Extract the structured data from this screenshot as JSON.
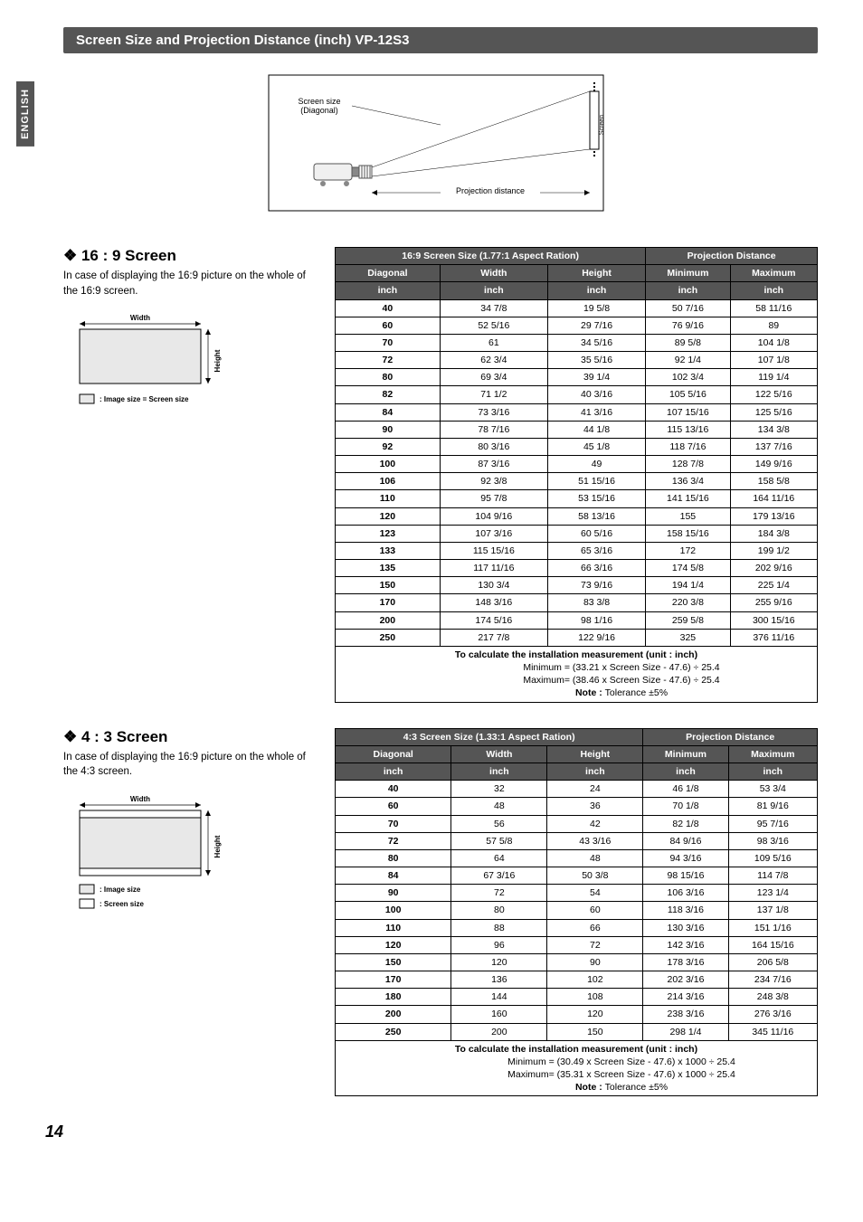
{
  "sideTab": "ENGLISH",
  "titleBar": "Screen Size and Projection Distance (inch)  VP-12S3",
  "pageNum": "14",
  "topDiagram": {
    "screenSizeLabel": "Screen size\n(Diagonal)",
    "projDistLabel": "Projection distance",
    "screenLabel": "Screen"
  },
  "sec169": {
    "heading": "16 : 9 Screen",
    "desc": "In case of displaying the 16:9 picture on the whole of the 16:9 screen.",
    "mini": {
      "widthLabel": "Width",
      "heightLabel": "Height",
      "legend1": ": Image size = Screen size"
    },
    "table": {
      "h1": "16:9 Screen Size (1.77:1 Aspect Ration)",
      "h2": "Projection Distance",
      "cols": [
        "Diagonal",
        "Width",
        "Height",
        "Minimum",
        "Maximum"
      ],
      "unit": "inch",
      "rows": [
        [
          "40",
          "34 7/8",
          "19 5/8",
          "50 7/16",
          "58 11/16"
        ],
        [
          "60",
          "52 5/16",
          "29 7/16",
          "76 9/16",
          "89"
        ],
        [
          "70",
          "61",
          "34 5/16",
          "89 5/8",
          "104 1/8"
        ],
        [
          "72",
          "62 3/4",
          "35 5/16",
          "92 1/4",
          "107 1/8"
        ],
        [
          "80",
          "69 3/4",
          "39 1/4",
          "102 3/4",
          "119 1/4"
        ],
        [
          "82",
          "71 1/2",
          "40 3/16",
          "105 5/16",
          "122 5/16"
        ],
        [
          "84",
          "73 3/16",
          "41 3/16",
          "107 15/16",
          "125 5/16"
        ],
        [
          "90",
          "78 7/16",
          "44 1/8",
          "115 13/16",
          "134 3/8"
        ],
        [
          "92",
          "80 3/16",
          "45 1/8",
          "118 7/16",
          "137 7/16"
        ],
        [
          "100",
          "87 3/16",
          "49",
          "128 7/8",
          "149 9/16"
        ],
        [
          "106",
          "92 3/8",
          "51 15/16",
          "136 3/4",
          "158 5/8"
        ],
        [
          "110",
          "95 7/8",
          "53 15/16",
          "141 15/16",
          "164 11/16"
        ],
        [
          "120",
          "104 9/16",
          "58 13/16",
          "155",
          "179 13/16"
        ],
        [
          "123",
          "107 3/16",
          "60 5/16",
          "158 15/16",
          "184 3/8"
        ],
        [
          "133",
          "115 15/16",
          "65 3/16",
          "172",
          "199 1/2"
        ],
        [
          "135",
          "117 11/16",
          "66 3/16",
          "174 5/8",
          "202 9/16"
        ],
        [
          "150",
          "130 3/4",
          "73 9/16",
          "194 1/4",
          "225 1/4"
        ],
        [
          "170",
          "148 3/16",
          "83 3/8",
          "220 3/8",
          "255 9/16"
        ],
        [
          "200",
          "174 5/16",
          "98 1/16",
          "259 5/8",
          "300 15/16"
        ],
        [
          "250",
          "217 7/8",
          "122 9/16",
          "325",
          "376 11/16"
        ]
      ],
      "calcHead": "To calculate the installation measurement (unit : inch)",
      "calcMin": "Minimum = (33.21 x Screen Size - 47.6) ÷ 25.4",
      "calcMax": "Maximum= (38.46 x Screen Size - 47.6) ÷ 25.4",
      "calcNote": "Note : ",
      "calcNoteRest": "Tolerance ±5%"
    }
  },
  "sec43": {
    "heading": "4 : 3 Screen",
    "desc": "In case of displaying the 16:9 picture on the whole of the 4:3 screen.",
    "mini": {
      "widthLabel": "Width",
      "heightLabel": "Height",
      "legend1": ": Image size",
      "legend2": ": Screen size"
    },
    "table": {
      "h1": "4:3 Screen Size (1.33:1 Aspect Ration)",
      "h2": "Projection Distance",
      "cols": [
        "Diagonal",
        "Width",
        "Height",
        "Minimum",
        "Maximum"
      ],
      "unit": "inch",
      "rows": [
        [
          "40",
          "32",
          "24",
          "46 1/8",
          "53 3/4"
        ],
        [
          "60",
          "48",
          "36",
          "70 1/8",
          "81 9/16"
        ],
        [
          "70",
          "56",
          "42",
          "82 1/8",
          "95 7/16"
        ],
        [
          "72",
          "57 5/8",
          "43 3/16",
          "84 9/16",
          "98 3/16"
        ],
        [
          "80",
          "64",
          "48",
          "94 3/16",
          "109 5/16"
        ],
        [
          "84",
          "67 3/16",
          "50 3/8",
          "98 15/16",
          "114 7/8"
        ],
        [
          "90",
          "72",
          "54",
          "106 3/16",
          "123 1/4"
        ],
        [
          "100",
          "80",
          "60",
          "118 3/16",
          "137 1/8"
        ],
        [
          "110",
          "88",
          "66",
          "130 3/16",
          "151 1/16"
        ],
        [
          "120",
          "96",
          "72",
          "142 3/16",
          "164 15/16"
        ],
        [
          "150",
          "120",
          "90",
          "178 3/16",
          "206 5/8"
        ],
        [
          "170",
          "136",
          "102",
          "202 3/16",
          "234 7/16"
        ],
        [
          "180",
          "144",
          "108",
          "214 3/16",
          "248 3/8"
        ],
        [
          "200",
          "160",
          "120",
          "238 3/16",
          "276 3/16"
        ],
        [
          "250",
          "200",
          "150",
          "298 1/4",
          "345 11/16"
        ]
      ],
      "calcHead": "To calculate the installation measurement (unit : inch)",
      "calcMin": "Minimum = (30.49 x Screen Size - 47.6) x 1000 ÷ 25.4",
      "calcMax": "Maximum= (35.31 x Screen Size - 47.6) x 1000 ÷ 25.4",
      "calcNote": "Note : ",
      "calcNoteRest": "Tolerance ±5%"
    }
  }
}
